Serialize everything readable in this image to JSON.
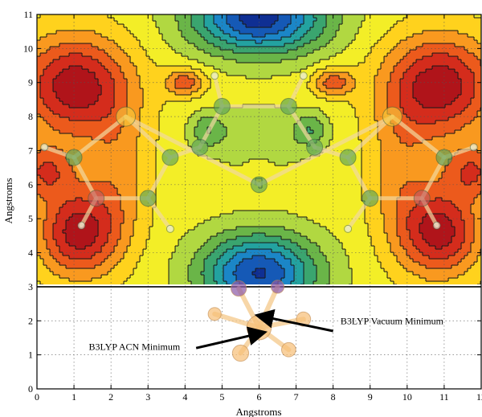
{
  "chart_data": {
    "type": "heatmap",
    "xlabel": "Angstroms",
    "ylabel": "Angstroms",
    "xlim": [
      0,
      12
    ],
    "ylim": [
      0,
      11
    ],
    "xticks": [
      0,
      1,
      2,
      3,
      4,
      5,
      6,
      7,
      8,
      9,
      10,
      11,
      12
    ],
    "yticks": [
      0,
      1,
      2,
      3,
      4,
      5,
      6,
      7,
      8,
      9,
      10,
      11
    ],
    "contour_region_y": [
      3,
      11
    ],
    "grid": "dotted",
    "colormap": [
      "#b0141a",
      "#d42c1c",
      "#ec5a1c",
      "#f9991f",
      "#ffd21d",
      "#f3ee27",
      "#b1d841",
      "#6ab548",
      "#3aa56f",
      "#23a2a0",
      "#1b86c7",
      "#1559b6",
      "#0f2f93"
    ],
    "maxima": [
      {
        "x": 1.0,
        "y": 8.9
      },
      {
        "x": 10.9,
        "y": 8.9
      },
      {
        "x": 1.1,
        "y": 4.6
      },
      {
        "x": 10.9,
        "y": 4.6
      },
      {
        "x": 4.0,
        "y": 9.0
      },
      {
        "x": 8.0,
        "y": 9.0
      }
    ],
    "minima": [
      {
        "x": 6.0,
        "y": 3.4
      },
      {
        "x": 6.0,
        "y": 10.9
      }
    ],
    "molecule_atoms": [
      {
        "x": 2.4,
        "y": 8.0,
        "type": "S"
      },
      {
        "x": 1.6,
        "y": 5.6,
        "type": "O"
      },
      {
        "x": 1.0,
        "y": 6.8,
        "type": "C"
      },
      {
        "x": 3.0,
        "y": 5.6,
        "type": "C"
      },
      {
        "x": 3.6,
        "y": 6.8,
        "type": "C"
      },
      {
        "x": 4.4,
        "y": 7.1,
        "type": "C"
      },
      {
        "x": 5.0,
        "y": 8.3,
        "type": "C"
      },
      {
        "x": 6.8,
        "y": 8.3,
        "type": "C"
      },
      {
        "x": 7.5,
        "y": 7.1,
        "type": "C"
      },
      {
        "x": 8.4,
        "y": 6.8,
        "type": "C"
      },
      {
        "x": 9.0,
        "y": 5.6,
        "type": "C"
      },
      {
        "x": 10.4,
        "y": 5.6,
        "type": "O"
      },
      {
        "x": 11.0,
        "y": 6.8,
        "type": "C"
      },
      {
        "x": 9.6,
        "y": 8.0,
        "type": "S"
      },
      {
        "x": 6.0,
        "y": 6.0,
        "type": "C"
      },
      {
        "x": 0.2,
        "y": 7.1,
        "type": "H"
      },
      {
        "x": 1.2,
        "y": 4.8,
        "type": "H"
      },
      {
        "x": 3.6,
        "y": 4.7,
        "type": "H"
      },
      {
        "x": 4.8,
        "y": 9.2,
        "type": "H"
      },
      {
        "x": 7.2,
        "y": 9.2,
        "type": "H"
      },
      {
        "x": 8.4,
        "y": 4.7,
        "type": "H"
      },
      {
        "x": 10.8,
        "y": 4.8,
        "type": "H"
      },
      {
        "x": 11.8,
        "y": 7.1,
        "type": "H"
      }
    ],
    "minimum_molecule_atoms": [
      {
        "x": 6.0,
        "y": 1.8,
        "type": "C",
        "r": 0.6
      },
      {
        "x": 5.45,
        "y": 2.95,
        "type": "S",
        "r": 0.38
      },
      {
        "x": 6.5,
        "y": 3.0,
        "type": "S",
        "r": 0.32
      },
      {
        "x": 4.8,
        "y": 2.2,
        "type": "C",
        "r": 0.32
      },
      {
        "x": 7.2,
        "y": 2.05,
        "type": "C",
        "r": 0.35
      },
      {
        "x": 5.5,
        "y": 1.05,
        "type": "C",
        "r": 0.4
      },
      {
        "x": 6.8,
        "y": 1.15,
        "type": "C",
        "r": 0.35
      }
    ],
    "annotations": [
      {
        "text": "B3LYP Vacuum Minimum",
        "text_x": 8.2,
        "text_y": 1.9,
        "arrow_from": [
          8.0,
          1.7
        ],
        "arrow_to": [
          6.0,
          2.15
        ]
      },
      {
        "text": "B3LYP ACN Minimum",
        "text_x": 1.4,
        "text_y": 1.15,
        "arrow_from": [
          4.3,
          1.2
        ],
        "arrow_to": [
          6.1,
          1.65
        ]
      }
    ]
  }
}
